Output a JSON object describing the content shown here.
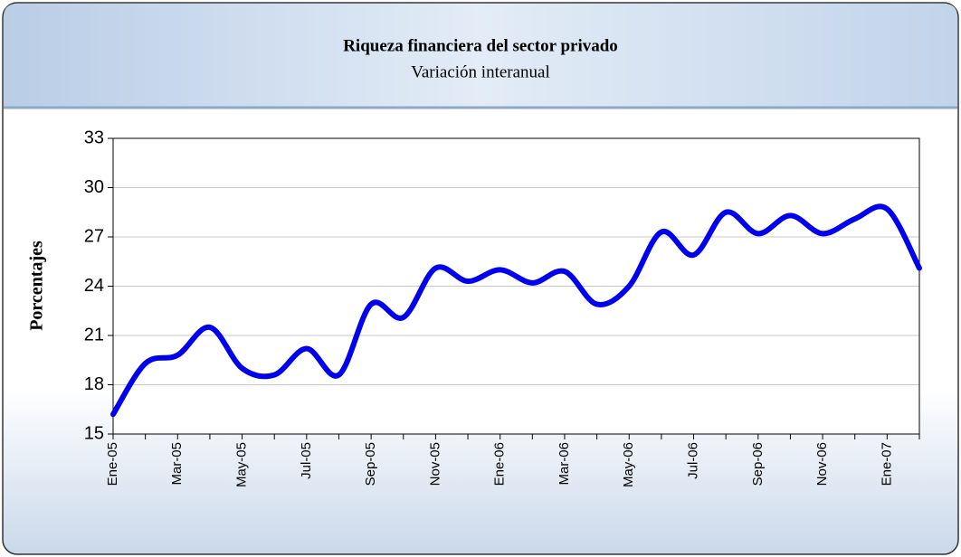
{
  "chart_data": {
    "type": "line",
    "title": "Riqueza financiera del sector privado",
    "subtitle": "Variación interanual",
    "y_label": "Porcentajes",
    "categories": [
      "Ene-05",
      null,
      "Mar-05",
      null,
      "May-05",
      null,
      "Jul-05",
      null,
      "Sep-05",
      null,
      "Nov-05",
      null,
      "Ene-06",
      null,
      "Mar-06",
      null,
      "May-06",
      null,
      "Jul-06",
      null,
      "Sep-06",
      null,
      "Nov-06",
      null,
      "Ene-07",
      null
    ],
    "series": [
      {
        "name": "Variación interanual",
        "color": "#0000ee",
        "values": [
          16.2,
          19.3,
          19.8,
          21.5,
          19.0,
          18.6,
          20.2,
          18.6,
          22.9,
          22.1,
          25.1,
          24.3,
          25.0,
          24.2,
          24.9,
          22.9,
          24.0,
          27.3,
          25.9,
          28.5,
          27.2,
          28.3,
          27.2,
          28.1,
          28.7,
          25.1
        ]
      }
    ],
    "ylim": [
      15,
      33
    ],
    "yticks": [
      15,
      18,
      21,
      24,
      27,
      30,
      33
    ],
    "grid": true
  }
}
